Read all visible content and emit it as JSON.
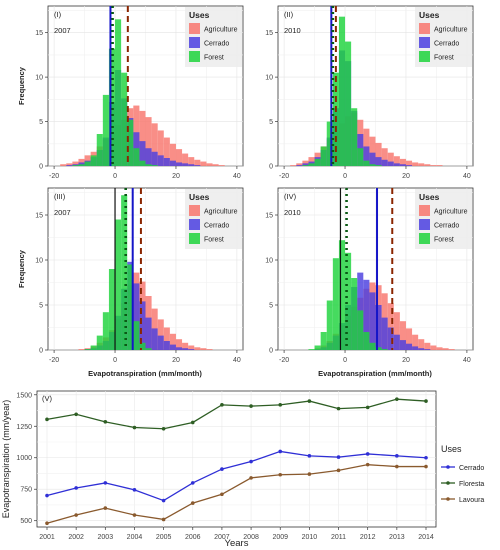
{
  "chart_data": [
    {
      "panel_label": "(I)",
      "type": "bar",
      "subtitle": "2007",
      "ylabel": "Frequency",
      "xlabel": "",
      "xlim": [
        -22,
        42
      ],
      "ylim": [
        0,
        18
      ],
      "xticks": [
        "-20",
        "0",
        "20",
        "40"
      ],
      "yticks": [
        "0",
        "5",
        "10",
        "15"
      ],
      "grid": true,
      "legend": {
        "title": "Uses",
        "placement": "right-inside",
        "entries": [
          "Agriculture",
          "Cerrado",
          "Forest"
        ]
      },
      "bin_width": 2,
      "bin_starts": [
        -20,
        -18,
        -16,
        -14,
        -12,
        -10,
        -8,
        -6,
        -4,
        -2,
        0,
        2,
        4,
        6,
        8,
        10,
        12,
        14,
        16,
        18,
        20,
        22,
        24,
        26,
        28,
        30,
        32,
        34,
        36
      ],
      "series": [
        {
          "name": "Agriculture",
          "values": [
            0,
            0.2,
            0.3,
            0.5,
            0.8,
            1.2,
            1.6,
            2.2,
            3,
            3.8,
            4.6,
            5.2,
            6.5,
            6.8,
            6.2,
            5.5,
            4.8,
            4,
            3.2,
            2.5,
            1.9,
            1.4,
            1,
            0.7,
            0.5,
            0.3,
            0.2,
            0.1,
            0
          ]
        },
        {
          "name": "Cerrado",
          "values": [
            0,
            0,
            0.1,
            0.2,
            0.4,
            0.6,
            1,
            1.8,
            3.2,
            7.2,
            10.8,
            7.6,
            5.4,
            3.8,
            2.8,
            2,
            1.6,
            1.2,
            0.9,
            0.6,
            0.4,
            0.3,
            0.2,
            0.1,
            0,
            0,
            0,
            0,
            0
          ]
        },
        {
          "name": "Forest",
          "values": [
            0,
            0,
            0,
            0.1,
            0.2,
            0.5,
            1.2,
            3.6,
            8,
            13.2,
            16.5,
            10.5,
            5.2,
            2,
            0.6,
            0.2,
            0.1,
            0,
            0,
            0,
            0,
            0,
            0,
            0,
            0,
            0,
            0,
            0,
            0
          ]
        }
      ],
      "reference_lines": [
        {
          "name": "Agriculture",
          "x": 4.2,
          "style": "dashed"
        },
        {
          "name": "Cerrado",
          "x": -1.5,
          "style": "solid"
        },
        {
          "name": "Forest",
          "x": -0.8,
          "style": "dotted"
        }
      ]
    },
    {
      "panel_label": "(II)",
      "type": "bar",
      "subtitle": "2010",
      "ylabel": "",
      "xlabel": "",
      "xlim": [
        -22,
        42
      ],
      "ylim": [
        0,
        18
      ],
      "xticks": [
        "-20",
        "0",
        "20",
        "40"
      ],
      "yticks": [
        "0",
        "5",
        "10",
        "15"
      ],
      "grid": true,
      "legend": {
        "title": "Uses",
        "placement": "right-inside",
        "entries": [
          "Agriculture",
          "Cerrado",
          "Forest"
        ]
      },
      "bin_width": 2,
      "bin_starts": [
        -20,
        -18,
        -16,
        -14,
        -12,
        -10,
        -8,
        -6,
        -4,
        -2,
        0,
        2,
        4,
        6,
        8,
        10,
        12,
        14,
        16,
        18,
        20,
        22,
        24,
        26,
        28,
        30,
        32,
        34,
        36
      ],
      "series": [
        {
          "name": "Agriculture",
          "values": [
            0,
            0.1,
            0.3,
            0.6,
            1,
            1.5,
            2.2,
            3,
            3.8,
            4.8,
            5.6,
            6,
            5.2,
            4.2,
            3.3,
            2.6,
            2,
            1.5,
            1.1,
            0.8,
            0.6,
            0.4,
            0.3,
            0.2,
            0.1,
            0.1,
            0,
            0,
            0
          ]
        },
        {
          "name": "Cerrado",
          "values": [
            0,
            0,
            0.1,
            0.3,
            0.5,
            1,
            1.8,
            3.2,
            6.5,
            13,
            11.8,
            6.2,
            3.6,
            2.2,
            1.5,
            1,
            0.7,
            0.5,
            0.3,
            0.2,
            0.1,
            0,
            0,
            0,
            0,
            0,
            0,
            0,
            0
          ]
        },
        {
          "name": "Forest",
          "values": [
            0,
            0,
            0,
            0.1,
            0.3,
            0.8,
            2.2,
            5,
            10.5,
            16.8,
            14,
            6.5,
            2,
            0.6,
            0.2,
            0.1,
            0,
            0,
            0,
            0,
            0,
            0,
            0,
            0,
            0,
            0,
            0,
            0,
            0
          ]
        }
      ],
      "reference_lines": [
        {
          "name": "Agriculture",
          "x": -3,
          "style": "dashed"
        },
        {
          "name": "Cerrado",
          "x": -4.5,
          "style": "solid"
        },
        {
          "name": "Forest",
          "x": -4,
          "style": "dotted"
        }
      ]
    },
    {
      "panel_label": "(III)",
      "type": "bar",
      "subtitle": "2007",
      "ylabel": "Frequency",
      "xlabel": "",
      "xlim": [
        -22,
        42
      ],
      "ylim": [
        0,
        18
      ],
      "xticks": [
        "-20",
        "0",
        "20",
        "40"
      ],
      "yticks": [
        "0",
        "5",
        "10",
        "15"
      ],
      "grid": true,
      "legend": {
        "title": "Uses",
        "placement": "right-inside",
        "entries": [
          "Agriculture",
          "Cerrado",
          "Forest"
        ]
      },
      "bin_width": 2,
      "bin_starts": [
        -20,
        -18,
        -16,
        -14,
        -12,
        -10,
        -8,
        -6,
        -4,
        -2,
        0,
        2,
        4,
        6,
        8,
        10,
        12,
        14,
        16,
        18,
        20,
        22,
        24,
        26,
        28,
        30,
        32,
        34,
        36
      ],
      "series": [
        {
          "name": "Agriculture",
          "values": [
            0,
            0,
            0,
            0,
            0.1,
            0.2,
            0.4,
            0.8,
            1.4,
            2.2,
            3.4,
            5.2,
            7.2,
            8.6,
            7.6,
            6,
            4.6,
            3.4,
            2.5,
            1.8,
            1.2,
            0.8,
            0.5,
            0.3,
            0.2,
            0.1,
            0,
            0,
            0
          ]
        },
        {
          "name": "Cerrado",
          "values": [
            0,
            0,
            0,
            0,
            0,
            0.1,
            0.2,
            0.5,
            1,
            2,
            3.8,
            6.8,
            9.8,
            7.4,
            5.4,
            3.6,
            2.4,
            1.6,
            1,
            0.6,
            0.3,
            0.2,
            0.1,
            0,
            0,
            0,
            0,
            0,
            0
          ]
        },
        {
          "name": "Forest",
          "values": [
            0,
            0,
            0,
            0,
            0,
            0.1,
            0.5,
            1.6,
            4.2,
            9,
            14.5,
            17.2,
            9.5,
            3.2,
            0.8,
            0.2,
            0,
            0,
            0,
            0,
            0,
            0,
            0,
            0,
            0,
            0,
            0,
            0,
            0
          ]
        }
      ],
      "reference_lines": [
        {
          "name": "Agriculture",
          "x": 8.5,
          "style": "dashed"
        },
        {
          "name": "Cerrado",
          "x": 5.8,
          "style": "solid"
        },
        {
          "name": "Forest",
          "x": 3.5,
          "style": "dotted"
        },
        {
          "name": "",
          "x": 0,
          "style": "solid-black"
        }
      ]
    },
    {
      "panel_label": "(IV)",
      "type": "bar",
      "subtitle": "2010",
      "ylabel": "",
      "xlabel": "",
      "xlim": [
        -22,
        42
      ],
      "ylim": [
        0,
        18
      ],
      "xticks": [
        "-20",
        "0",
        "20",
        "40"
      ],
      "yticks": [
        "0",
        "5",
        "10",
        "15"
      ],
      "grid": true,
      "legend": {
        "title": "Uses",
        "placement": "right-inside",
        "entries": [
          "Agriculture",
          "Cerrado",
          "Forest"
        ]
      },
      "bin_width": 2,
      "bin_starts": [
        -20,
        -18,
        -16,
        -14,
        -12,
        -10,
        -8,
        -6,
        -4,
        -2,
        0,
        2,
        4,
        6,
        8,
        10,
        12,
        14,
        16,
        18,
        20,
        22,
        24,
        26,
        28,
        30,
        32,
        34,
        36
      ],
      "series": [
        {
          "name": "Agriculture",
          "values": [
            0,
            0,
            0,
            0,
            0,
            0.2,
            0.5,
            1,
            1.8,
            2.8,
            3.8,
            4.8,
            5.8,
            6.8,
            7.5,
            7.2,
            6.3,
            5.2,
            4.2,
            3.2,
            2.4,
            1.7,
            1.2,
            0.8,
            0.5,
            0.3,
            0.2,
            0.1,
            0
          ]
        },
        {
          "name": "Cerrado",
          "values": [
            0,
            0,
            0,
            0,
            0,
            0.1,
            0.3,
            0.8,
            1.6,
            3,
            5,
            7,
            8.6,
            7.8,
            6.4,
            5,
            3.6,
            2.5,
            1.7,
            1.1,
            0.7,
            0.4,
            0.2,
            0.1,
            0,
            0,
            0,
            0,
            0
          ]
        },
        {
          "name": "Forest",
          "values": [
            0,
            0,
            0,
            0,
            0.1,
            0.5,
            2,
            5.5,
            10.2,
            12.2,
            10.8,
            8,
            4.4,
            2,
            0.8,
            0.3,
            0.1,
            0,
            0,
            0,
            0,
            0,
            0,
            0,
            0,
            0,
            0,
            0,
            0
          ]
        }
      ],
      "reference_lines": [
        {
          "name": "Agriculture",
          "x": 15.5,
          "style": "dashed"
        },
        {
          "name": "Cerrado",
          "x": 10.5,
          "style": "solid"
        },
        {
          "name": "Forest",
          "x": 0.5,
          "style": "dotted"
        },
        {
          "name": "",
          "x": -1.5,
          "style": "solid-black"
        }
      ]
    },
    {
      "panel_label": "(V)",
      "type": "line",
      "title": "",
      "xlabel": "Years",
      "ylabel": "Evapotranspiration (mm/year)",
      "x": [
        2001,
        2002,
        2003,
        2004,
        2005,
        2006,
        2007,
        2008,
        2009,
        2010,
        2011,
        2012,
        2013,
        2014
      ],
      "xticks": [
        "2001",
        "2002",
        "2003",
        "2004",
        "2005",
        "2006",
        "2007",
        "2008",
        "2009",
        "2010",
        "2011",
        "2012",
        "2013",
        "2014"
      ],
      "yticks": [
        "500",
        "750",
        "1000",
        "1250",
        "1500"
      ],
      "ylim": [
        450,
        1530
      ],
      "grid": true,
      "legend": {
        "title": "Uses",
        "placement": "right-outside",
        "entries": [
          "Cerrado",
          "Floresta",
          "Lavoura"
        ]
      },
      "series": [
        {
          "name": "Cerrado",
          "values": [
            700,
            760,
            800,
            745,
            660,
            800,
            910,
            970,
            1050,
            1015,
            1005,
            1030,
            1015,
            1000
          ]
        },
        {
          "name": "Floresta",
          "values": [
            1305,
            1345,
            1285,
            1240,
            1230,
            1280,
            1420,
            1410,
            1420,
            1450,
            1390,
            1400,
            1465,
            1450
          ]
        },
        {
          "name": "Lavoura",
          "values": [
            480,
            545,
            600,
            545,
            510,
            640,
            710,
            840,
            865,
            870,
            900,
            945,
            930,
            930
          ]
        }
      ]
    }
  ],
  "axis_labels": {
    "hist_x": "Evapotranspiration (mm/month)"
  },
  "colors": {
    "Agriculture": "#f8766d",
    "Cerrado": "#4b3fe0",
    "Forest": "#1ed43c",
    "ref_Agriculture": "#8b2500",
    "ref_Cerrado": "#1515c8",
    "ref_Forest": "#0a5a14",
    "line_Cerrado": "#2f2fd6",
    "line_Floresta": "#2e5e24",
    "line_Lavoura": "#8a5a2e"
  }
}
